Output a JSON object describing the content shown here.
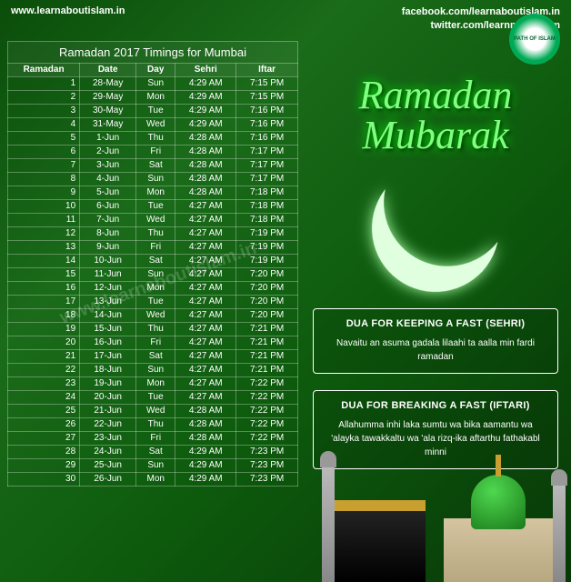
{
  "header": {
    "website": "www.learnaboutislam.in",
    "facebook": "facebook.com/learnaboutislam.in",
    "twitter": "twitter.com/learnmoreislam",
    "logo_text": "PATH OF ISLAM",
    "logo_url": "www.learnaboutislam.in"
  },
  "table": {
    "title": "Ramadan 2017 Timings for Mumbai",
    "columns": [
      "Ramadan",
      "Date",
      "Day",
      "Sehri",
      "Iftar"
    ],
    "rows": [
      [
        "1",
        "28-May",
        "Sun",
        "4:29 AM",
        "7:15 PM"
      ],
      [
        "2",
        "29-May",
        "Mon",
        "4:29 AM",
        "7:15 PM"
      ],
      [
        "3",
        "30-May",
        "Tue",
        "4:29 AM",
        "7:16 PM"
      ],
      [
        "4",
        "31-May",
        "Wed",
        "4:29 AM",
        "7:16 PM"
      ],
      [
        "5",
        "1-Jun",
        "Thu",
        "4:28 AM",
        "7:16 PM"
      ],
      [
        "6",
        "2-Jun",
        "Fri",
        "4:28 AM",
        "7:17 PM"
      ],
      [
        "7",
        "3-Jun",
        "Sat",
        "4:28 AM",
        "7:17 PM"
      ],
      [
        "8",
        "4-Jun",
        "Sun",
        "4:28 AM",
        "7:17 PM"
      ],
      [
        "9",
        "5-Jun",
        "Mon",
        "4:28 AM",
        "7:18 PM"
      ],
      [
        "10",
        "6-Jun",
        "Tue",
        "4:27 AM",
        "7:18 PM"
      ],
      [
        "11",
        "7-Jun",
        "Wed",
        "4:27 AM",
        "7:18 PM"
      ],
      [
        "12",
        "8-Jun",
        "Thu",
        "4:27 AM",
        "7:19 PM"
      ],
      [
        "13",
        "9-Jun",
        "Fri",
        "4:27 AM",
        "7:19 PM"
      ],
      [
        "14",
        "10-Jun",
        "Sat",
        "4:27 AM",
        "7:19 PM"
      ],
      [
        "15",
        "11-Jun",
        "Sun",
        "4:27 AM",
        "7:20 PM"
      ],
      [
        "16",
        "12-Jun",
        "Mon",
        "4:27 AM",
        "7:20 PM"
      ],
      [
        "17",
        "13-Jun",
        "Tue",
        "4:27 AM",
        "7:20 PM"
      ],
      [
        "18",
        "14-Jun",
        "Wed",
        "4:27 AM",
        "7:20 PM"
      ],
      [
        "19",
        "15-Jun",
        "Thu",
        "4:27 AM",
        "7:21 PM"
      ],
      [
        "20",
        "16-Jun",
        "Fri",
        "4:27 AM",
        "7:21 PM"
      ],
      [
        "21",
        "17-Jun",
        "Sat",
        "4:27 AM",
        "7:21 PM"
      ],
      [
        "22",
        "18-Jun",
        "Sun",
        "4:27 AM",
        "7:21 PM"
      ],
      [
        "23",
        "19-Jun",
        "Mon",
        "4:27 AM",
        "7:22 PM"
      ],
      [
        "24",
        "20-Jun",
        "Tue",
        "4:27 AM",
        "7:22 PM"
      ],
      [
        "25",
        "21-Jun",
        "Wed",
        "4:28 AM",
        "7:22 PM"
      ],
      [
        "26",
        "22-Jun",
        "Thu",
        "4:28 AM",
        "7:22 PM"
      ],
      [
        "27",
        "23-Jun",
        "Fri",
        "4:28 AM",
        "7:22 PM"
      ],
      [
        "28",
        "24-Jun",
        "Sat",
        "4:29 AM",
        "7:23 PM"
      ],
      [
        "29",
        "25-Jun",
        "Sun",
        "4:29 AM",
        "7:23 PM"
      ],
      [
        "30",
        "26-Jun",
        "Mon",
        "4:29 AM",
        "7:23 PM"
      ]
    ]
  },
  "greeting": {
    "line1": "Ramadan",
    "line2": "Mubarak"
  },
  "dua_sehri": {
    "title": "DUA FOR KEEPING A FAST (SEHRI)",
    "text": "Navaitu an asuma gadala lilaahi ta aalla min fardi ramadan"
  },
  "dua_iftar": {
    "title": "DUA FOR BREAKING A FAST (IFTARI)",
    "text": "Allahumma inhi laka sumtu wa bika aamantu wa 'alayka tawakkaltu wa 'ala rizq-ika aftarthu fathakabl minni"
  },
  "watermark": "www.learnaboutislam.in",
  "styling": {
    "bg_gradient": [
      "#0a4d0a",
      "#1a6b1a",
      "#0d5a0d",
      "#083808"
    ],
    "title_color": "#7fff7f",
    "border_color": "rgba(255,255,255,0.3)",
    "text_color": "#ffffff",
    "table_font_size": 10,
    "dua_title_font_size": 11,
    "dua_text_font_size": 10,
    "greeting_font_size": 44
  }
}
